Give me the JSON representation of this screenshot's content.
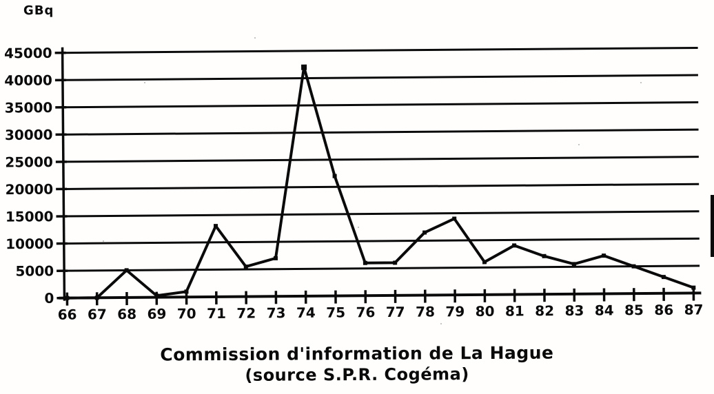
{
  "page": {
    "unit_label": "GBq",
    "title_line1": "Commission d'information de La Hague",
    "title_line2": "(source S.P.R. Cogéma)"
  },
  "chart_data": {
    "type": "line",
    "x": [
      66,
      67,
      68,
      69,
      70,
      71,
      72,
      73,
      74,
      75,
      76,
      77,
      78,
      79,
      80,
      81,
      82,
      83,
      84,
      85,
      86,
      87
    ],
    "values": [
      0,
      0,
      5000,
      300,
      1000,
      13000,
      5500,
      7000,
      42000,
      22000,
      6000,
      6000,
      11500,
      14000,
      6000,
      9000,
      7000,
      5500,
      7000,
      5000,
      3000,
      1000
    ],
    "title": "Commission d'information de La Hague",
    "subtitle": "(source S.P.R. Cogéma)",
    "xlabel": "",
    "ylabel": "GBq",
    "ylim": [
      0,
      45000
    ],
    "yticks": [
      0,
      5000,
      10000,
      15000,
      20000,
      25000,
      30000,
      35000,
      40000,
      45000
    ],
    "grid": "horizontal gridlines only",
    "legend": "none",
    "line_color": "#0a0a0a",
    "background_color": "#ffffff",
    "marker": "square"
  }
}
